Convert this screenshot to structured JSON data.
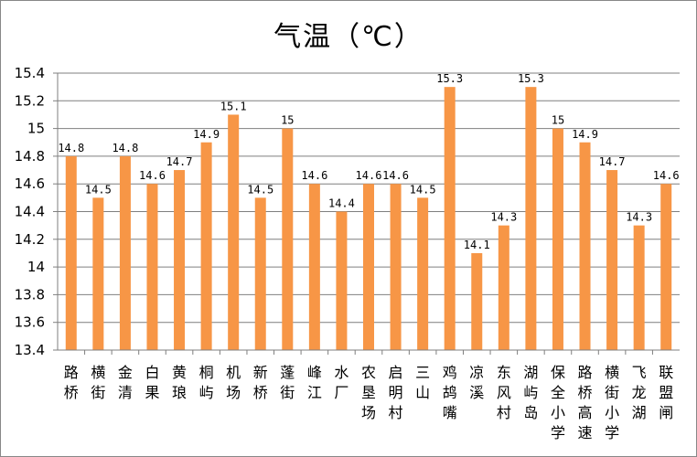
{
  "chart_data": {
    "type": "bar",
    "title": "气温（℃）",
    "xlabel": "",
    "ylabel": "",
    "ylim": [
      13.4,
      15.4
    ],
    "yticks": [
      13.4,
      13.6,
      13.8,
      14,
      14.2,
      14.4,
      14.6,
      14.8,
      15,
      15.2,
      15.4
    ],
    "ytick_labels": [
      "13.4",
      "13.6",
      "13.8",
      "14",
      "14.2",
      "14.4",
      "14.6",
      "14.8",
      "15",
      "15.2",
      "15.4"
    ],
    "grid": true,
    "legend": "none",
    "bar_color": "#F79646",
    "categories": [
      "路桥",
      "横街",
      "金清",
      "白果",
      "黄琅",
      "桐屿",
      "机场",
      "新桥",
      "蓬街",
      "峰江",
      "水厂",
      "农垦场",
      "启明村",
      "三山",
      "鸡鸪嘴",
      "凉溪",
      "东风村",
      "湖屿岛",
      "保全小学",
      "路桥高速",
      "横街小学",
      "飞龙湖",
      "联盟闸"
    ],
    "values": [
      14.8,
      14.5,
      14.8,
      14.6,
      14.7,
      14.9,
      15.1,
      14.5,
      15,
      14.6,
      14.4,
      14.6,
      14.6,
      14.5,
      15.3,
      14.1,
      14.3,
      15.3,
      15,
      14.9,
      14.7,
      14.3,
      14.6
    ],
    "value_labels": [
      "14.8",
      "14.5",
      "14.8",
      "14.6",
      "14.7",
      "14.9",
      "15.1",
      "14.5",
      "15",
      "14.6",
      "14.4",
      "14.6",
      "14.6",
      "14.5",
      "15.3",
      "14.1",
      "14.3",
      "15.3",
      "15",
      "14.9",
      "14.7",
      "14.3",
      "14.6"
    ]
  }
}
